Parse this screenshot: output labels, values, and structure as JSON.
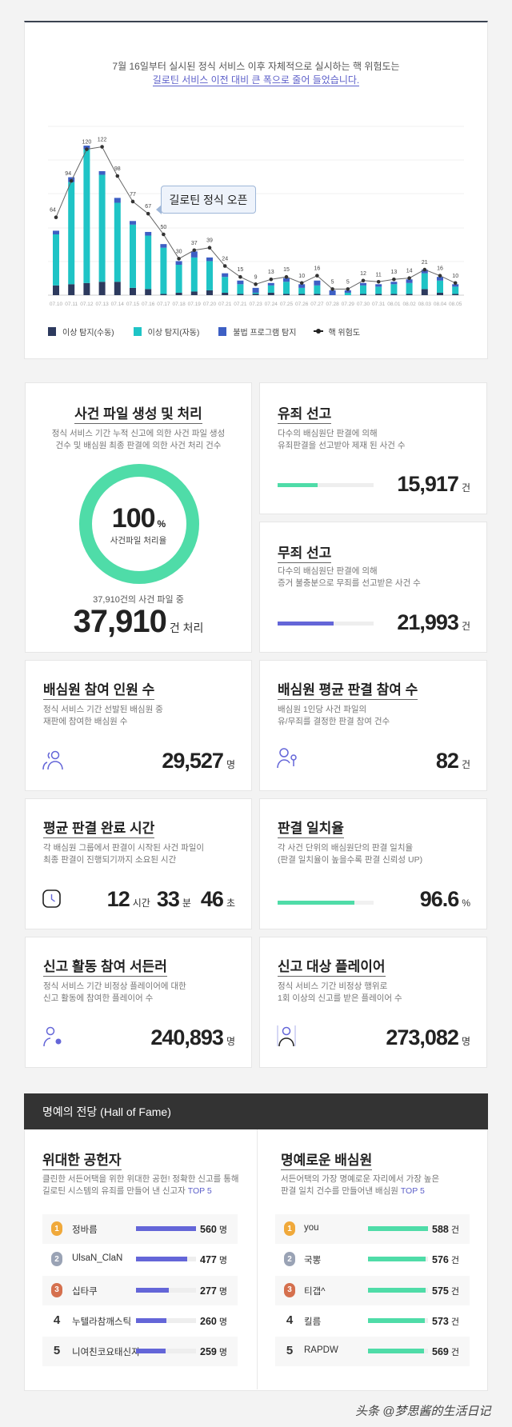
{
  "colors": {
    "manual": "#2d3a5e",
    "auto": "#1fc4c6",
    "illegal": "#3d5fc4",
    "line": "#555555",
    "green": "#4fdca8",
    "purple": "#6466d8",
    "dark": "#333333"
  },
  "intro": {
    "line1": "7월 16일부터 실시된 정식 서비스 이후 자체적으로 실시하는 핵 위험도는",
    "line2": "길로틴 서비스 이전 대비 큰 폭으로 줄어 들었습니다."
  },
  "callout": "길로틴 정식 오픈",
  "chart_data": {
    "type": "bar",
    "categories": [
      "07.10",
      "07.11",
      "07.12",
      "07.13",
      "07.14",
      "07.15",
      "07.16",
      "07.17",
      "07.18",
      "07.19",
      "07.20",
      "07.21",
      "07.21",
      "07.23",
      "07.24",
      "07.25",
      "07.26",
      "07.27",
      "07.28",
      "07.29",
      "07.30",
      "07.31",
      "08.01",
      "08.02",
      "08.03",
      "08.04",
      "08.05"
    ],
    "series": [
      {
        "name": "이상 탐지(수동)",
        "type": "bar",
        "stacked": true,
        "values": [
          8,
          9,
          10,
          11,
          11,
          6,
          5,
          1,
          2,
          3,
          4,
          2,
          1,
          1,
          2,
          1,
          1,
          1,
          0,
          0,
          1,
          1,
          1,
          1,
          5,
          2,
          1
        ]
      },
      {
        "name": "이상 탐지(자동)",
        "type": "bar",
        "stacked": true,
        "values": [
          42,
          84,
          110,
          88,
          65,
          52,
          44,
          38,
          23,
          28,
          24,
          13,
          8,
          1,
          6,
          10,
          5,
          7,
          0,
          2,
          7,
          6,
          8,
          9,
          13,
          10,
          6
        ]
      },
      {
        "name": "불법 프로그램 탐지",
        "type": "bar",
        "stacked": true,
        "values": [
          3,
          4,
          3,
          3,
          4,
          3,
          3,
          3,
          3,
          5,
          3,
          3,
          3,
          4,
          2,
          3,
          3,
          4,
          4,
          2,
          2,
          2,
          2,
          3,
          3,
          3,
          2
        ]
      },
      {
        "name": "핵 위험도",
        "type": "line",
        "values": [
          64,
          94,
          120,
          122,
          98,
          77,
          67,
          50,
          30,
          37,
          39,
          24,
          15,
          9,
          13,
          15,
          10,
          16,
          5,
          5,
          12,
          11,
          13,
          14,
          21,
          16,
          10
        ]
      }
    ],
    "ylim": [
      0,
      140
    ],
    "grid": true,
    "legend": "bottom-left"
  },
  "case_files": {
    "title": "사건 파일 생성 및 처리",
    "desc1": "정식 서비스 기간 누적 신고에 의한 사건 파일 생성",
    "desc2": "건수 및  배심원 최종 판결에 의한 사건 처리 건수",
    "percent": "100",
    "percent_unit": "%",
    "percent_label": "사건파일 처리율",
    "progress": 100,
    "sub": "37,910건의 사건 파일 중",
    "value": "37,910",
    "unit": "건 처리"
  },
  "guilty": {
    "title": "유죄 선고",
    "desc1": "다수의 배심원단 판결에 의해",
    "desc2": "유죄판결을 선고받아 제재 된 사건 수",
    "value": "15,917",
    "unit": "건",
    "progress": 42
  },
  "innocent": {
    "title": "무죄 선고",
    "desc1": "다수의 배심원단 판결에 의해",
    "desc2": "증거 불충분으로 무죄를 선고받은 사건 수",
    "value": "21,993",
    "unit": "건",
    "progress": 58
  },
  "stats": [
    {
      "title": "배심원 참여 인원 수",
      "desc1": "정식 서비스 기간 선발된 배심원 중",
      "desc2": "재판에 참여한 배심원 수",
      "value": "29,527",
      "unit": "명",
      "icon": "users-icon"
    },
    {
      "title": "배심원 평균 판결 참여 수",
      "desc1": "배심원 1인당 사건 파일의",
      "desc2": "유/무죄를 결정한 판결 참여 건수",
      "value": "82",
      "unit": "건",
      "icon": "juror-gavel-icon"
    },
    {
      "title": "평균 판결 완료 시간",
      "desc1": "각 배심원 그룹에서 판결이 시작된 사건 파일이",
      "desc2": "최종 판결이 진행되기까지 소요된 시간",
      "hours": "12",
      "hours_unit": "시간",
      "minutes": "33",
      "minutes_unit": "분",
      "seconds": "46",
      "seconds_unit": "초",
      "icon": "clock-icon"
    },
    {
      "title": "판결 일치율",
      "desc1": "각 사건 단위의 배심원단의 판결 일치율",
      "desc2": "(판결 일치율이 높을수록 판결 신뢰성 UP)",
      "value": "96.6",
      "unit": "%",
      "progress": 96.6
    },
    {
      "title": "신고 활동 참여 서든러",
      "desc1": "정식 서비스 기간 비정상 플레이어에 대한",
      "desc2": "신고 활동에 참여한 플레이어 수",
      "value": "240,893",
      "unit": "명",
      "icon": "user-star-icon"
    },
    {
      "title": "신고 대상 플레이어",
      "desc1": "정식 서비스 기간  비정상 행위로",
      "desc2": "1회 이상의 신고를 받은 플레이어 수",
      "value": "273,082",
      "unit": "명",
      "icon": "reported-user-icon"
    }
  ],
  "hall": {
    "header": "명예의 전당 (Hall of Fame)",
    "left": {
      "title": "위대한 공헌자",
      "desc1": "클린한 서든어택을 위한 위대한 공헌! 정확한 신고를 통해",
      "desc2": "길로틴 시스템의 유죄를 만들어 낸 신고자 ",
      "top": "TOP 5",
      "unit": "명",
      "rows": [
        {
          "rank": "1",
          "name": "정바름",
          "value": "560",
          "pct": 100
        },
        {
          "rank": "2",
          "name": "UlsaN_ClaN",
          "value": "477",
          "pct": 85
        },
        {
          "rank": "3",
          "name": "십타쿠",
          "value": "277",
          "pct": 55
        },
        {
          "rank": "4",
          "name": "누텔라참깨스틱",
          "value": "260",
          "pct": 50
        },
        {
          "rank": "5",
          "name": "니여친코요태신지",
          "value": "259",
          "pct": 49
        }
      ]
    },
    "right": {
      "title": "명예로운 배심원",
      "desc1": "서든어택의 가장 명예로운 자리에서 가장 높은",
      "desc2": "판결 일치 건수를 만들어낸 배심원 ",
      "top": "TOP 5",
      "unit": "건",
      "rows": [
        {
          "rank": "1",
          "name": "you",
          "value": "588",
          "pct": 100
        },
        {
          "rank": "2",
          "name": "국뽕",
          "value": "576",
          "pct": 96
        },
        {
          "rank": "3",
          "name": "티갭^",
          "value": "575",
          "pct": 96
        },
        {
          "rank": "4",
          "name": "킬름",
          "value": "573",
          "pct": 95
        },
        {
          "rank": "5",
          "name": "RAPDW",
          "value": "569",
          "pct": 93
        }
      ]
    }
  },
  "watermark": "头条 @梦思酱的生活日记"
}
